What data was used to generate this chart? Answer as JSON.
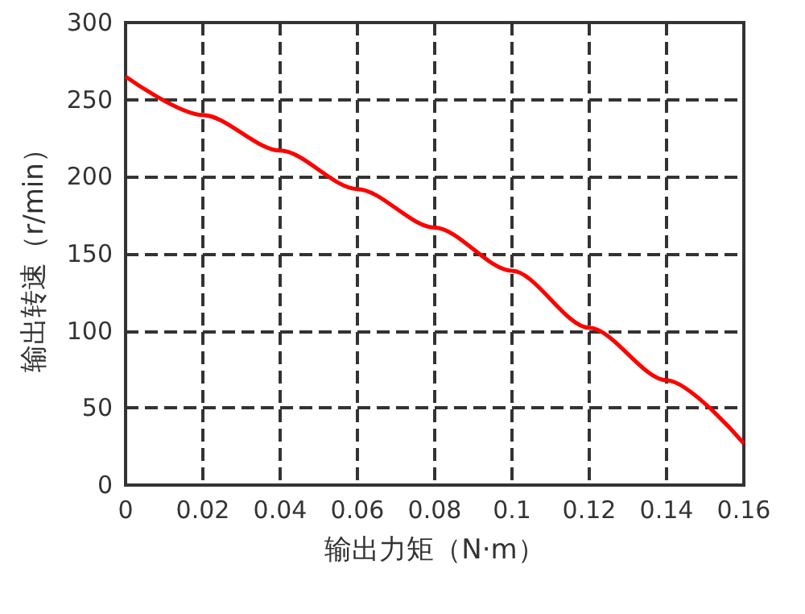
{
  "chart_data": {
    "type": "line",
    "xlabel": "输出力矩（N·m）",
    "ylabel": "输出转速（r/min）",
    "x": [
      0,
      0.02,
      0.04,
      0.06,
      0.08,
      0.1,
      0.12,
      0.14,
      0.16
    ],
    "series": [
      {
        "color": "#ff0000",
        "values": [
          265,
          240,
          217,
          192,
          167,
          139,
          102,
          68,
          27
        ]
      }
    ],
    "xlim": [
      0,
      0.16
    ],
    "xticks": [
      0,
      0.02,
      0.04,
      0.06,
      0.08,
      0.1,
      0.12,
      0.14,
      0.16
    ],
    "ylim": [
      0,
      300
    ],
    "yticks": [
      0,
      50,
      100,
      150,
      200,
      250,
      300
    ],
    "grid": true,
    "marker": "none",
    "line_style": "solid"
  }
}
